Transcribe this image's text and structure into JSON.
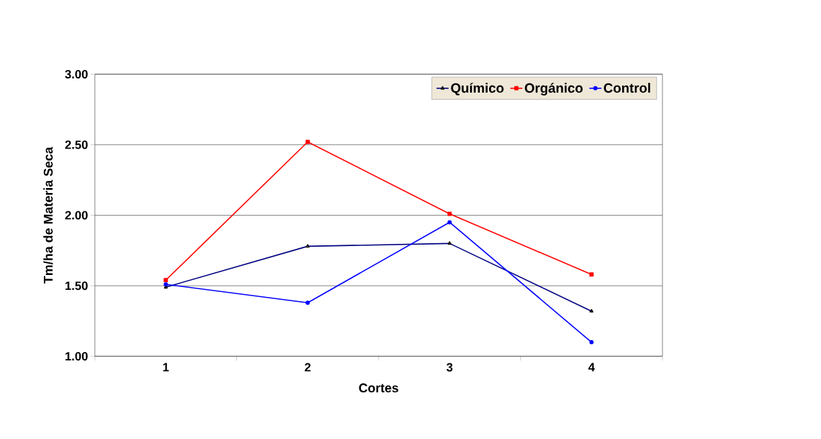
{
  "chart_data": {
    "type": "line",
    "xlabel": "Cortes",
    "ylabel": "Tm/ha de Materia Seca",
    "categories": [
      "1",
      "2",
      "3",
      "4"
    ],
    "series": [
      {
        "name": "Químico",
        "color": "#000080",
        "marker": "triangle",
        "values": [
          1.49,
          1.78,
          1.8,
          1.32
        ]
      },
      {
        "name": "Orgánico",
        "color": "#ff0000",
        "marker": "square",
        "values": [
          1.54,
          2.52,
          2.01,
          1.58
        ]
      },
      {
        "name": "Control",
        "color": "#0000ff",
        "marker": "circle",
        "values": [
          1.51,
          1.38,
          1.95,
          1.1
        ]
      }
    ],
    "ylim": [
      1.0,
      3.0
    ],
    "yticks": [
      {
        "value": 1.0,
        "label": "1.00"
      },
      {
        "value": 1.5,
        "label": "1.50"
      },
      {
        "value": 2.0,
        "label": "2.00"
      },
      {
        "value": 2.5,
        "label": "2.50"
      },
      {
        "value": 3.0,
        "label": "3.00"
      }
    ],
    "grid": "y",
    "legend": "top right",
    "line_style": "solid"
  }
}
